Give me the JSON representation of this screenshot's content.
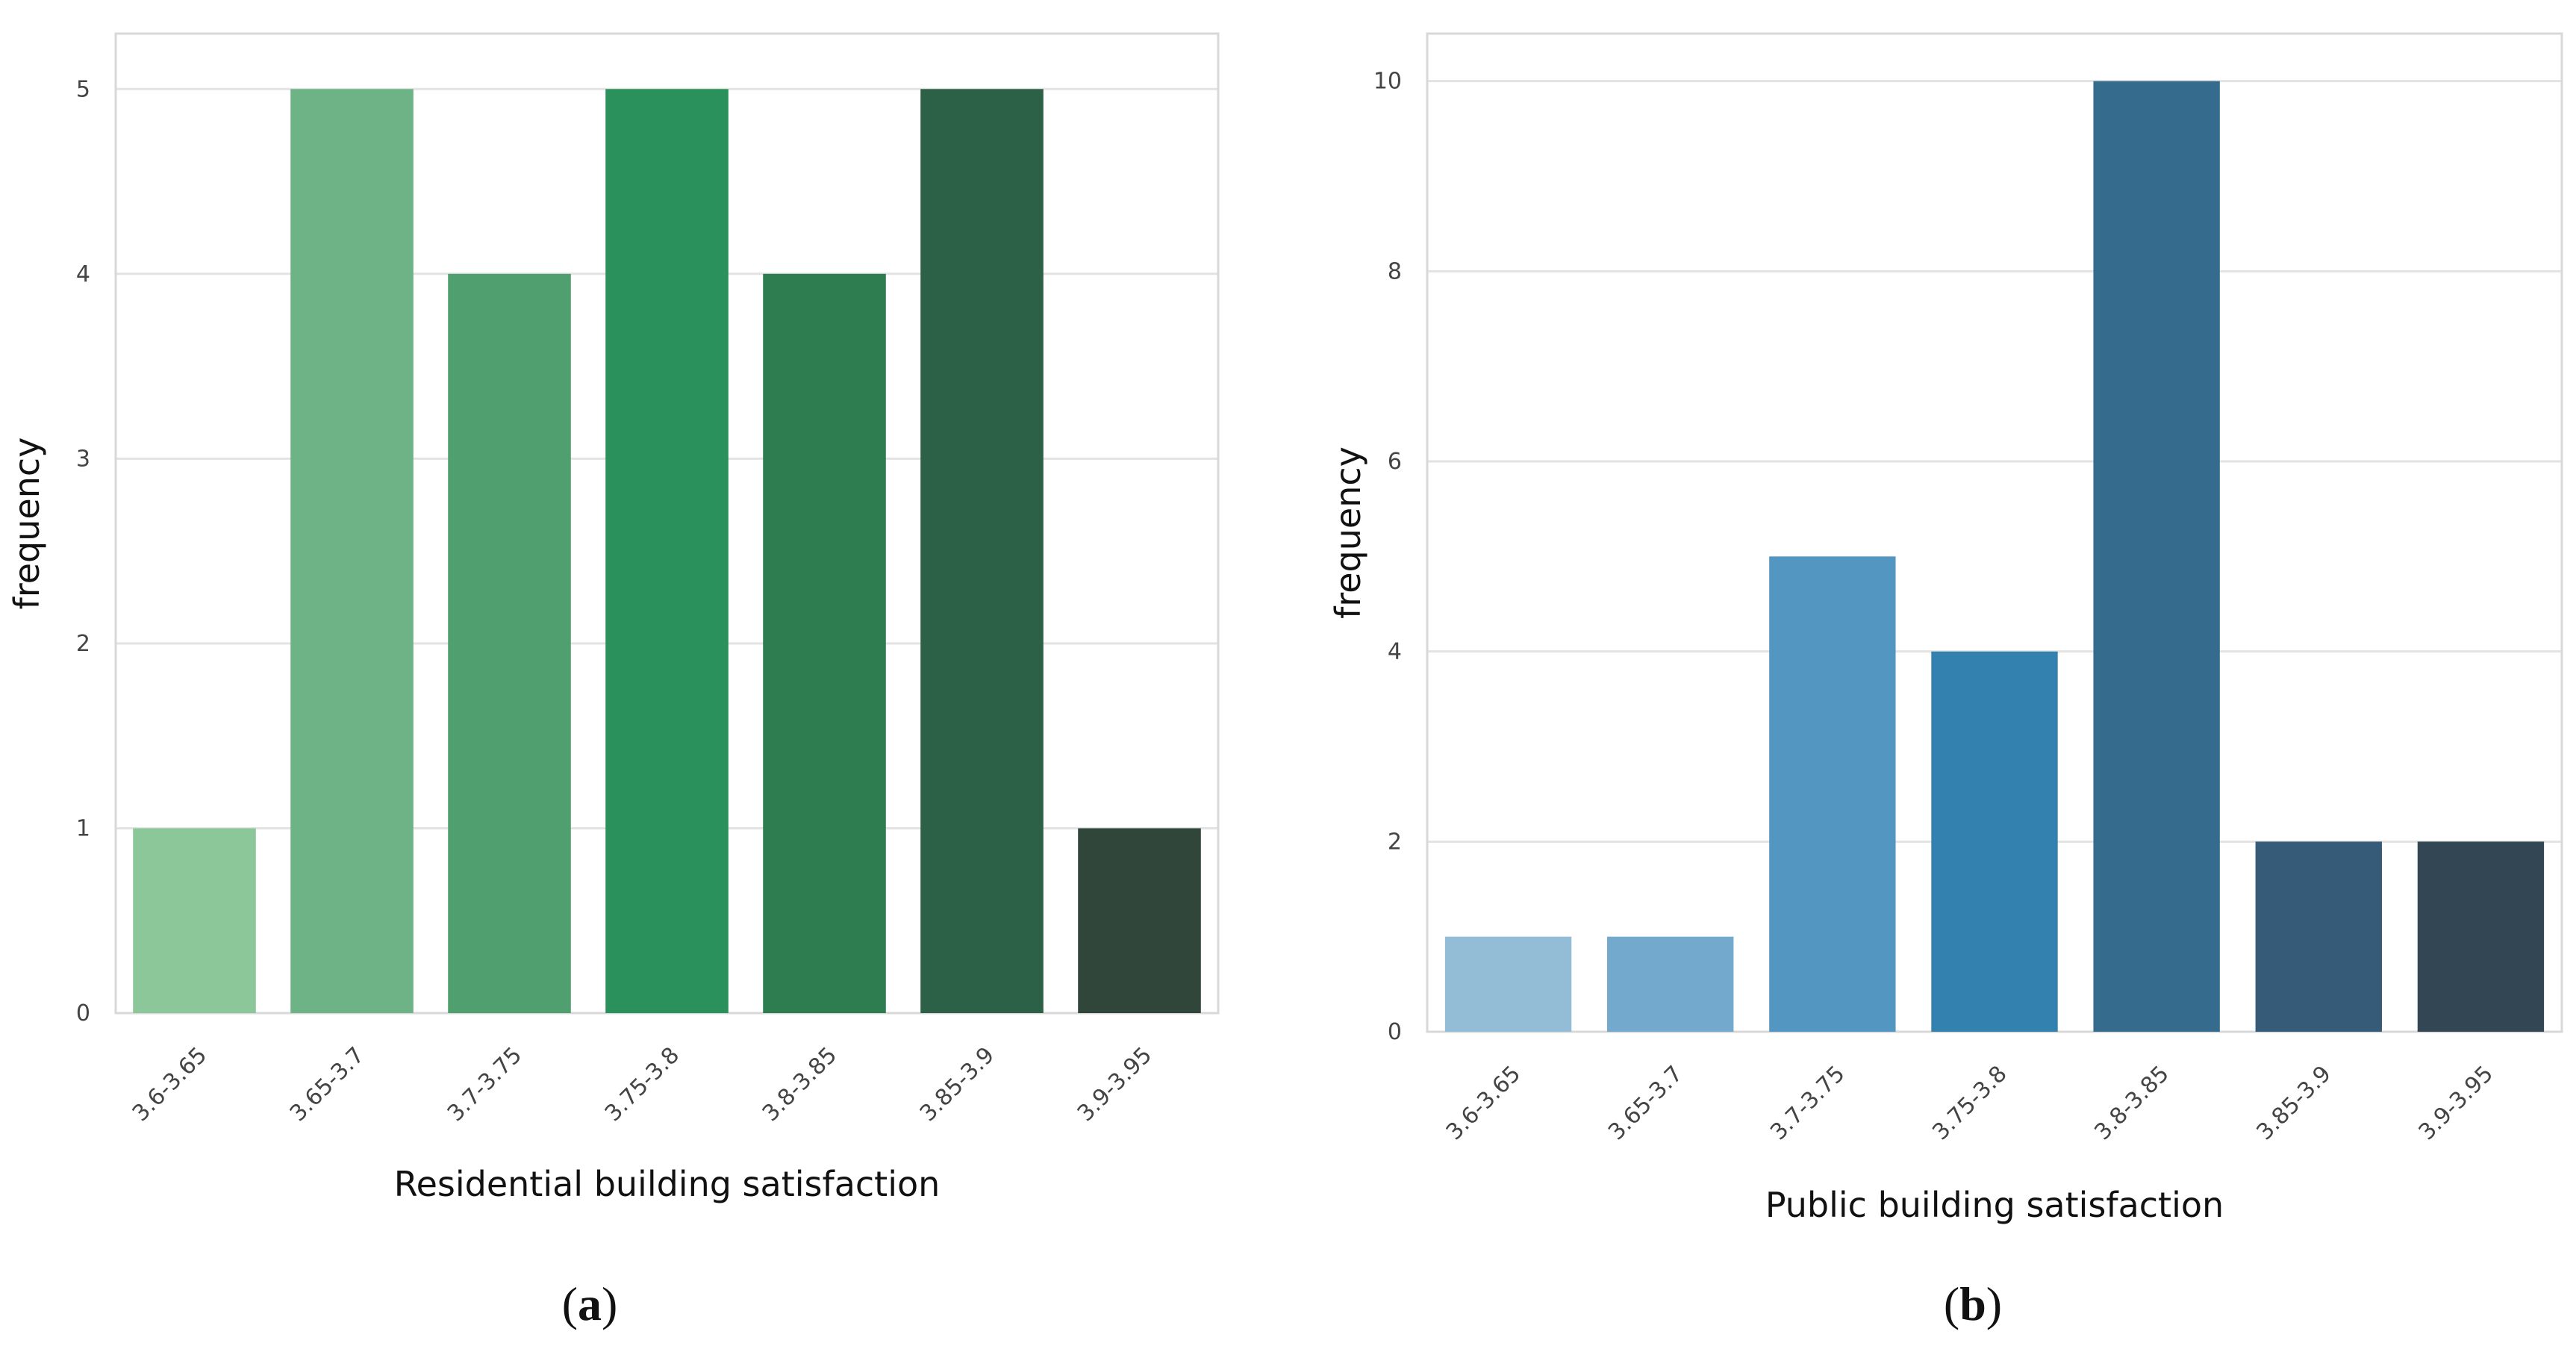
{
  "chart_data": [
    {
      "type": "bar",
      "panel_label": "a",
      "title": "",
      "xlabel": "Residential building satisfaction",
      "ylabel": "frequency",
      "categories": [
        "3.6-3.65",
        "3.65-3.7",
        "3.7-3.75",
        "3.75-3.8",
        "3.8-3.85",
        "3.85-3.9",
        "3.9-3.95"
      ],
      "values": [
        1,
        5,
        4,
        5,
        4,
        5,
        1
      ],
      "ylim": [
        0,
        5.3
      ],
      "yticks": [
        0,
        1,
        2,
        3,
        4,
        5
      ],
      "grid": true,
      "colors": [
        "#8cc79a",
        "#6db385",
        "#4f9f6f",
        "#2a915c",
        "#2e7d50",
        "#2d6147",
        "#30463a"
      ]
    },
    {
      "type": "bar",
      "panel_label": "b",
      "title": "",
      "xlabel": "Public building satisfaction",
      "ylabel": "frequency",
      "categories": [
        "3.6-3.65",
        "3.65-3.7",
        "3.7-3.75",
        "3.75-3.8",
        "3.8-3.85",
        "3.85-3.9",
        "3.9-3.95"
      ],
      "values": [
        1,
        1,
        5,
        4,
        10,
        2,
        2
      ],
      "ylim": [
        0,
        10.5
      ],
      "yticks": [
        0,
        2,
        4,
        6,
        8,
        10
      ],
      "grid": true,
      "colors": [
        "#93bcd6",
        "#72a9cd",
        "#5396c2",
        "#3381ae",
        "#356c8e",
        "#365b78",
        "#334653"
      ]
    }
  ]
}
